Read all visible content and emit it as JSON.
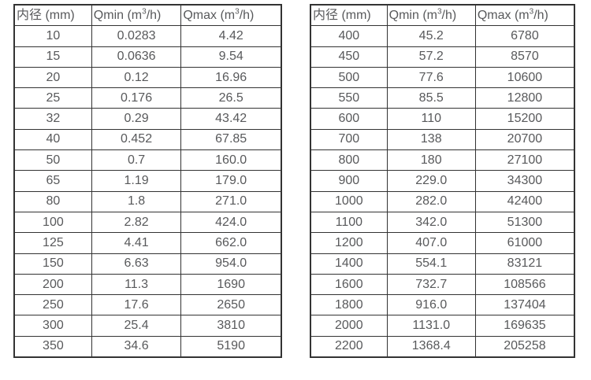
{
  "page": {
    "background_color": "#ffffff",
    "text_color": "#58595b",
    "border_color": "#333333"
  },
  "chart_data": [
    {
      "type": "table",
      "name": "flow-rate-table-small-diameters",
      "columns": [
        {
          "segments": [
            {
              "t": "内径 (mm)"
            }
          ]
        },
        {
          "segments": [
            {
              "t": "Qmin (m"
            },
            {
              "t": "3",
              "sup": true
            },
            {
              "t": "/h)"
            }
          ]
        },
        {
          "segments": [
            {
              "t": "Qmax (m"
            },
            {
              "t": "3",
              "sup": true
            },
            {
              "t": "/h)"
            }
          ]
        }
      ],
      "rows": [
        [
          "10",
          "0.0283",
          "4.42"
        ],
        [
          "15",
          "0.0636",
          "9.54"
        ],
        [
          "20",
          "0.12",
          "16.96"
        ],
        [
          "25",
          "0.176",
          "26.5"
        ],
        [
          "32",
          "0.29",
          "43.42"
        ],
        [
          "40",
          "0.452",
          "67.85"
        ],
        [
          "50",
          "0.7",
          "160.0"
        ],
        [
          "65",
          "1.19",
          "179.0"
        ],
        [
          "80",
          "1.8",
          "271.0"
        ],
        [
          "100",
          "2.82",
          "424.0"
        ],
        [
          "125",
          "4.41",
          "662.0"
        ],
        [
          "150",
          "6.63",
          "954.0"
        ],
        [
          "200",
          "11.3",
          "1690"
        ],
        [
          "250",
          "17.6",
          "2650"
        ],
        [
          "300",
          "25.4",
          "3810"
        ],
        [
          "350",
          "34.6",
          "5190"
        ]
      ]
    },
    {
      "type": "table",
      "name": "flow-rate-table-large-diameters",
      "columns": [
        {
          "segments": [
            {
              "t": "内径 (mm)"
            }
          ]
        },
        {
          "segments": [
            {
              "t": "Qmin (m"
            },
            {
              "t": "3",
              "sup": true
            },
            {
              "t": "/h)"
            }
          ]
        },
        {
          "segments": [
            {
              "t": "Qmax (m"
            },
            {
              "t": "3",
              "sup": true
            },
            {
              "t": "/h)"
            }
          ]
        }
      ],
      "rows": [
        [
          "400",
          "45.2",
          "6780"
        ],
        [
          "450",
          "57.2",
          "8570"
        ],
        [
          "500",
          "77.6",
          "10600"
        ],
        [
          "550",
          "85.5",
          "12800"
        ],
        [
          "600",
          "110",
          "15200"
        ],
        [
          "700",
          "138",
          "20700"
        ],
        [
          "800",
          "180",
          "27100"
        ],
        [
          "900",
          "229.0",
          "34300"
        ],
        [
          "1000",
          "282.0",
          "42400"
        ],
        [
          "1100",
          "342.0",
          "51300"
        ],
        [
          "1200",
          "407.0",
          "61000"
        ],
        [
          "1400",
          "554.1",
          "83121"
        ],
        [
          "1600",
          "732.7",
          "108566"
        ],
        [
          "1800",
          "916.0",
          "137404"
        ],
        [
          "2000",
          "1131.0",
          "169635"
        ],
        [
          "2200",
          "1368.4",
          "205258"
        ]
      ]
    }
  ]
}
